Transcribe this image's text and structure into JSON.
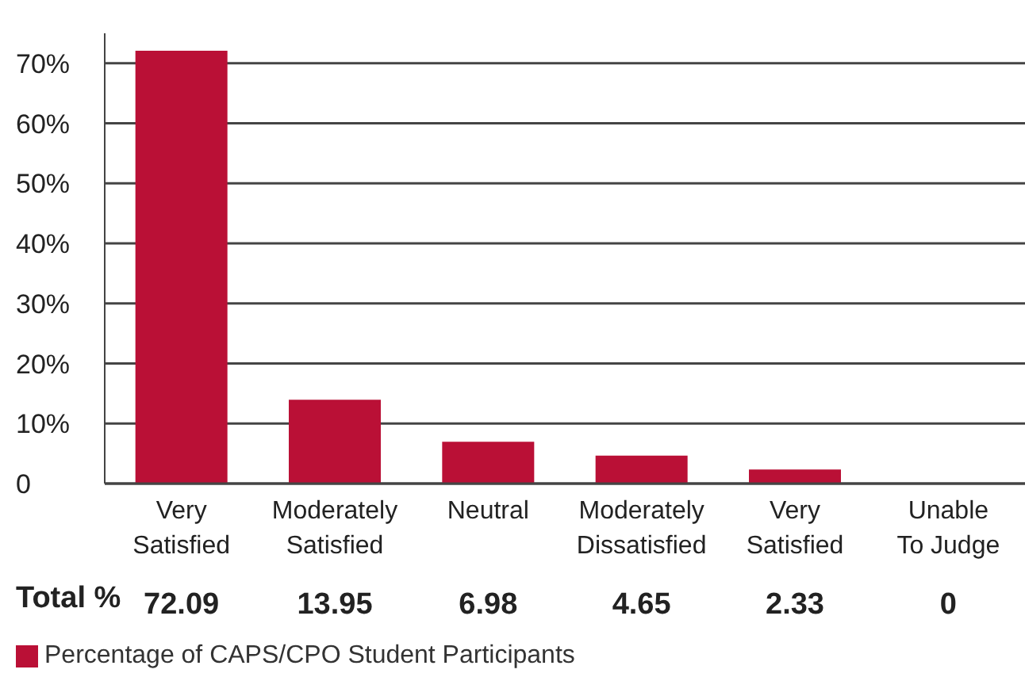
{
  "chart_data": {
    "type": "bar",
    "categories": [
      "Very Satisfied",
      "Moderately Satisfied",
      "Neutral",
      "Moderately Dissatisfied",
      "Very Satisfied",
      "Unable To Judge"
    ],
    "series": [
      {
        "name": "Percentage of CAPS/CPO Student Participants",
        "color": "#ba1036",
        "values": [
          72.09,
          13.95,
          6.98,
          4.65,
          2.33,
          0
        ]
      }
    ],
    "ylim": [
      0,
      75
    ],
    "yticks": [
      0,
      {
        "value": 10,
        "label": "10%"
      },
      {
        "value": 20,
        "label": "20%"
      },
      {
        "value": 30,
        "label": "30%"
      },
      {
        "value": 40,
        "label": "40%"
      },
      {
        "value": 50,
        "label": "50%"
      },
      {
        "value": 60,
        "label": "60%"
      },
      {
        "value": 70,
        "label": "70%"
      }
    ],
    "grid": "y",
    "legend": "bottom left",
    "data_labels": true,
    "annotations": [
      "Total %"
    ]
  }
}
